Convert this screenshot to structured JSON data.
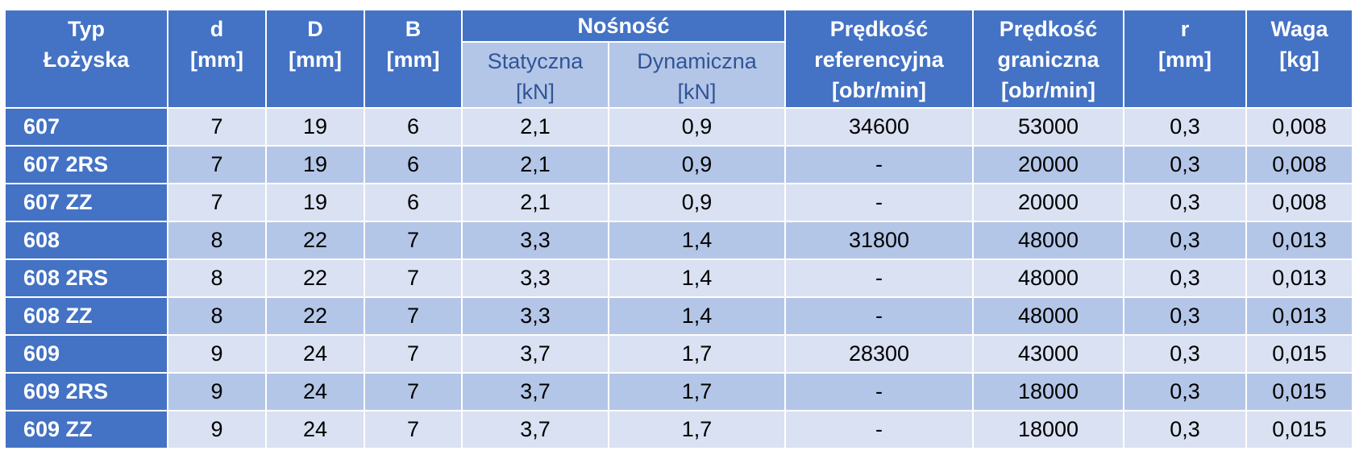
{
  "headers": {
    "type": [
      "Typ",
      "Łożyska"
    ],
    "d": [
      "d",
      "[mm]"
    ],
    "D": [
      "D",
      "[mm]"
    ],
    "B": [
      "B",
      "[mm]"
    ],
    "nosnosc": "Nośność",
    "static": [
      "Statyczna",
      "[kN]"
    ],
    "dynamic": [
      "Dynamiczna",
      "[kN]"
    ],
    "ref_speed": [
      "Prędkość",
      "referencyjna",
      "[obr/min]"
    ],
    "limit_speed": [
      "Prędkość",
      "graniczna",
      "[obr/min]"
    ],
    "r": [
      "r",
      "[mm]"
    ],
    "weight": [
      "Waga",
      "[kg]"
    ]
  },
  "rows": [
    [
      "607",
      "7",
      "19",
      "6",
      "2,1",
      "0,9",
      "34600",
      "53000",
      "0,3",
      "0,008"
    ],
    [
      "607 2RS",
      "7",
      "19",
      "6",
      "2,1",
      "0,9",
      "-",
      "20000",
      "0,3",
      "0,008"
    ],
    [
      "607 ZZ",
      "7",
      "19",
      "6",
      "2,1",
      "0,9",
      "-",
      "20000",
      "0,3",
      "0,008"
    ],
    [
      "608",
      "8",
      "22",
      "7",
      "3,3",
      "1,4",
      "31800",
      "48000",
      "0,3",
      "0,013"
    ],
    [
      "608 2RS",
      "8",
      "22",
      "7",
      "3,3",
      "1,4",
      "-",
      "48000",
      "0,3",
      "0,013"
    ],
    [
      "608 ZZ",
      "8",
      "22",
      "7",
      "3,3",
      "1,4",
      "-",
      "48000",
      "0,3",
      "0,013"
    ],
    [
      "609",
      "9",
      "24",
      "7",
      "3,7",
      "1,7",
      "28300",
      "43000",
      "0,3",
      "0,015"
    ],
    [
      "609 2RS",
      "9",
      "24",
      "7",
      "3,7",
      "1,7",
      "-",
      "18000",
      "0,3",
      "0,015"
    ],
    [
      "609 ZZ",
      "9",
      "24",
      "7",
      "3,7",
      "1,7",
      "-",
      "18000",
      "0,3",
      "0,015"
    ]
  ],
  "colors": {
    "header": "#4472C4",
    "row_light": "#D9E1F2",
    "row_medium": "#B4C6E7",
    "subheader_text": "#2F5597"
  }
}
